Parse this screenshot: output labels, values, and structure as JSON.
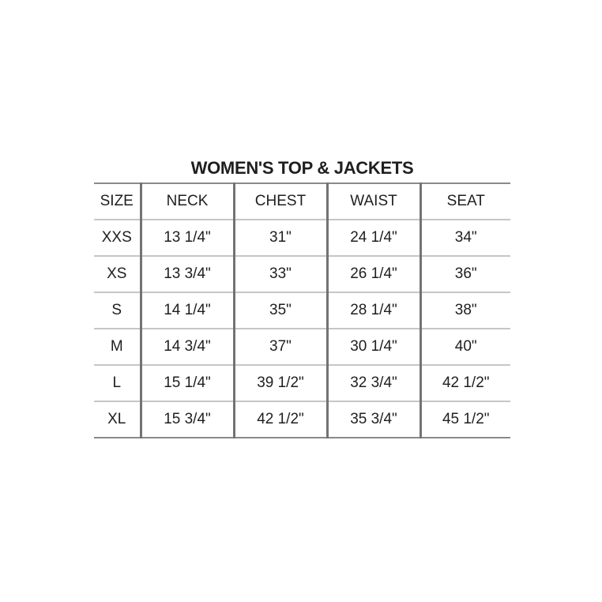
{
  "title": "WOMEN'S TOP & JACKETS",
  "chart_data": {
    "type": "table",
    "title": "WOMEN'S TOP & JACKETS",
    "columns": [
      "SIZE",
      "NECK",
      "CHEST",
      "WAIST",
      "SEAT"
    ],
    "rows": [
      [
        "XXS",
        "13 1/4\"",
        "31\"",
        "24 1/4\"",
        "34\""
      ],
      [
        "XS",
        "13 3/4\"",
        "33\"",
        "26 1/4\"",
        "36\""
      ],
      [
        "S",
        "14 1/4\"",
        "35\"",
        "28 1/4\"",
        "38\""
      ],
      [
        "M",
        "14 3/4\"",
        "37\"",
        "30 1/4\"",
        "40\""
      ],
      [
        "L",
        "15 1/4\"",
        "39 1/2\"",
        "32 3/4\"",
        "42 1/2\""
      ],
      [
        "XL",
        "15 3/4\"",
        "42 1/2\"",
        "35 3/4\"",
        "45 1/2\""
      ]
    ],
    "units": "inches",
    "layout": {
      "background": "#ffffff",
      "grid": "horizontal rules light gray, vertical column rules dark gray, no outer side borders"
    }
  },
  "colors": {
    "background": "#ffffff",
    "text": "#1f1f1f",
    "outer_horizontal_border": "#8a8a8a",
    "inner_horizontal_rule": "#c6c6c6",
    "vertical_column_rule": "#737373"
  }
}
